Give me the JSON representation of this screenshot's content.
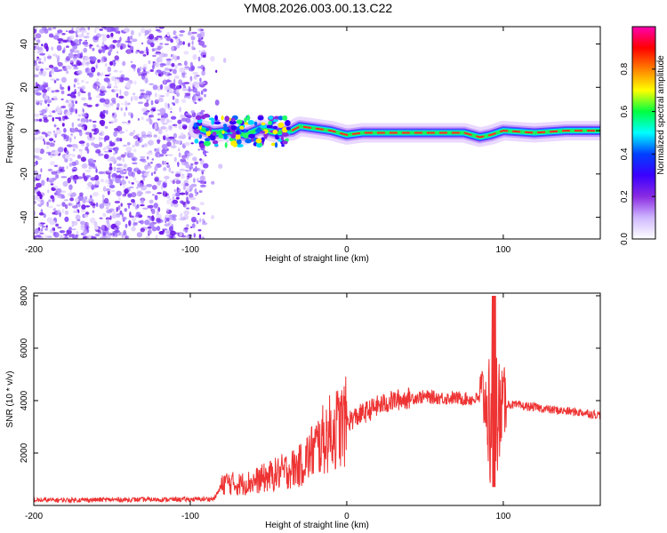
{
  "title": "YM08.2026.003.00.13.C22",
  "chart_data": [
    {
      "type": "heatmap",
      "title": "YM08.2026.003.00.13.C22",
      "xlabel": "Height of straight line (km)",
      "ylabel": "Frequency (Hz)",
      "xlim": [
        -200,
        162
      ],
      "ylim": [
        -50,
        48
      ],
      "xticks": [
        -200,
        -100,
        0,
        100
      ],
      "yticks": [
        -40,
        -20,
        0,
        20,
        40
      ],
      "colorbar": {
        "label": "Normalized spectral amplitude",
        "range": [
          0,
          1
        ],
        "ticks": [
          "0.0",
          "0.2",
          "0.4",
          "0.6",
          "0.8"
        ],
        "stops": [
          "#ffffff",
          "#cfb8ff",
          "#8a2be2",
          "#3b00ff",
          "#0040ff",
          "#00ffff",
          "#00ff40",
          "#ffff00",
          "#ff8000",
          "#ff0000",
          "#ff00b0"
        ]
      },
      "noise_region_x": [
        -200,
        -90
      ],
      "ridge_points": [
        {
          "x": -95,
          "y": 1
        },
        {
          "x": -85,
          "y": -1
        },
        {
          "x": -75,
          "y": 0
        },
        {
          "x": -65,
          "y": -2
        },
        {
          "x": -55,
          "y": 1
        },
        {
          "x": -45,
          "y": -1
        },
        {
          "x": -35,
          "y": 0
        },
        {
          "x": -30,
          "y": 2
        },
        {
          "x": -20,
          "y": 1
        },
        {
          "x": -10,
          "y": 0
        },
        {
          "x": 0,
          "y": -2
        },
        {
          "x": 10,
          "y": -1
        },
        {
          "x": 20,
          "y": -1
        },
        {
          "x": 40,
          "y": -1
        },
        {
          "x": 60,
          "y": -1
        },
        {
          "x": 75,
          "y": -1
        },
        {
          "x": 85,
          "y": -3
        },
        {
          "x": 92,
          "y": -2
        },
        {
          "x": 100,
          "y": 0
        },
        {
          "x": 120,
          "y": -1
        },
        {
          "x": 140,
          "y": 0
        },
        {
          "x": 162,
          "y": 0
        }
      ]
    },
    {
      "type": "line",
      "xlabel": "Height of straight line (km)",
      "ylabel": "SNR (10 * v/v)",
      "xlim": [
        -200,
        162
      ],
      "ylim": [
        0,
        8100
      ],
      "xticks": [
        -200,
        -100,
        0,
        100
      ],
      "yticks": [
        2000,
        4000,
        6000,
        8000
      ],
      "color": "#ee3333",
      "series": [
        {
          "name": "SNR",
          "x": [
            -200,
            -150,
            -100,
            -85,
            -78,
            -70,
            -60,
            -50,
            -40,
            -30,
            -20,
            -10,
            0,
            10,
            20,
            30,
            40,
            50,
            60,
            70,
            80,
            88,
            92,
            94,
            96,
            100,
            110,
            120,
            130,
            140,
            150,
            162
          ],
          "y": [
            200,
            220,
            230,
            250,
            900,
            800,
            900,
            1100,
            1300,
            1500,
            2200,
            2800,
            3200,
            3500,
            3800,
            4000,
            4100,
            4150,
            4100,
            4100,
            4050,
            4100,
            3000,
            4000,
            3500,
            3900,
            3800,
            3750,
            3650,
            3600,
            3550,
            3450
          ]
        }
      ],
      "spike_x": 94,
      "spike_range": [
        700,
        8000
      ]
    }
  ]
}
